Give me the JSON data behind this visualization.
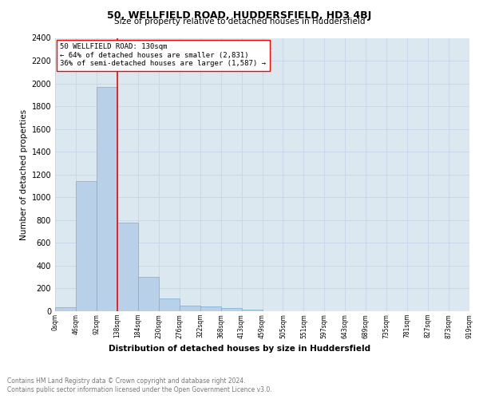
{
  "title": "50, WELLFIELD ROAD, HUDDERSFIELD, HD3 4BJ",
  "subtitle": "Size of property relative to detached houses in Huddersfield",
  "xlabel": "Distribution of detached houses by size in Huddersfield",
  "ylabel": "Number of detached properties",
  "footer_line1": "Contains HM Land Registry data © Crown copyright and database right 2024.",
  "footer_line2": "Contains public sector information licensed under the Open Government Licence v3.0.",
  "annotation_line1": "50 WELLFIELD ROAD: 130sqm",
  "annotation_line2": "← 64% of detached houses are smaller (2,831)",
  "annotation_line3": "36% of semi-detached houses are larger (1,587) →",
  "bar_color": "#b8d0e8",
  "bar_edge_color": "#7aaed0",
  "bar_values": [
    35,
    1145,
    1970,
    780,
    300,
    110,
    50,
    40,
    25,
    15,
    0,
    0,
    0,
    0,
    0,
    0,
    0,
    0,
    0,
    0
  ],
  "bin_labels": [
    "0sqm",
    "46sqm",
    "92sqm",
    "138sqm",
    "184sqm",
    "230sqm",
    "276sqm",
    "322sqm",
    "368sqm",
    "413sqm",
    "459sqm",
    "505sqm",
    "551sqm",
    "597sqm",
    "643sqm",
    "689sqm",
    "735sqm",
    "781sqm",
    "827sqm",
    "873sqm",
    "919sqm"
  ],
  "ylim": [
    0,
    2400
  ],
  "yticks": [
    0,
    200,
    400,
    600,
    800,
    1000,
    1200,
    1400,
    1600,
    1800,
    2000,
    2200,
    2400
  ],
  "red_line_bin": 3,
  "bin_width": 46,
  "n_bins": 20,
  "grid_color": "#c8d8e8",
  "plot_bg_color": "#dce8f0"
}
